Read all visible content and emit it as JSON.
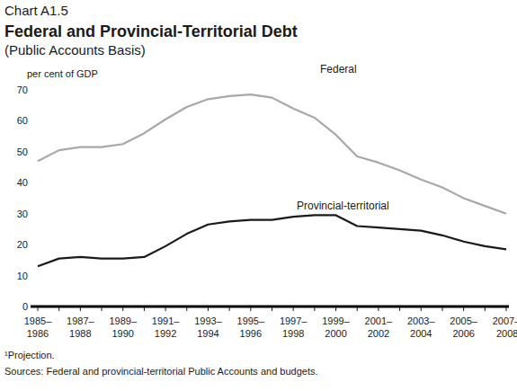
{
  "chart_data": {
    "type": "line",
    "chart_label": "Chart A1.5",
    "title": "Federal and Provincial-Territorial Debt",
    "subtitle": "(Public Accounts Basis)",
    "y_label": "per cent of GDP",
    "categories": [
      "1985–1986",
      null,
      "1987–1988",
      null,
      "1989–1990",
      null,
      "1991–1992",
      null,
      "1993–1994",
      null,
      "1995–1996",
      null,
      "1997–1998",
      null,
      "1999–2000",
      null,
      "2001–2002",
      null,
      "2003–2004",
      null,
      "2005–2006",
      null,
      "2007–2008¹"
    ],
    "series": [
      {
        "name": "Federal",
        "color": "#a8a8a8",
        "values": [
          47,
          50.5,
          51.5,
          51.5,
          52.5,
          56,
          60.5,
          64.5,
          67,
          68,
          68.5,
          67.5,
          64,
          61,
          55.5,
          48.5,
          46.5,
          44,
          41,
          38.5,
          35,
          32.5,
          30
        ]
      },
      {
        "name": "Provincial-territorial",
        "color": "#1a1a1a",
        "values": [
          13,
          15.5,
          16,
          15.5,
          15.5,
          16,
          19.5,
          23.5,
          26.5,
          27.5,
          28,
          28,
          29,
          29.5,
          29.5,
          26,
          25.5,
          25,
          24.5,
          23,
          21,
          19.5,
          18.5
        ]
      }
    ],
    "ylim": [
      0,
      70
    ],
    "yticks": [
      0,
      10,
      20,
      30,
      40,
      50,
      60,
      70
    ],
    "grid": false,
    "notes": [
      "¹Projection.",
      "Sources: Federal and provincial-territorial Public Accounts and budgets."
    ]
  }
}
